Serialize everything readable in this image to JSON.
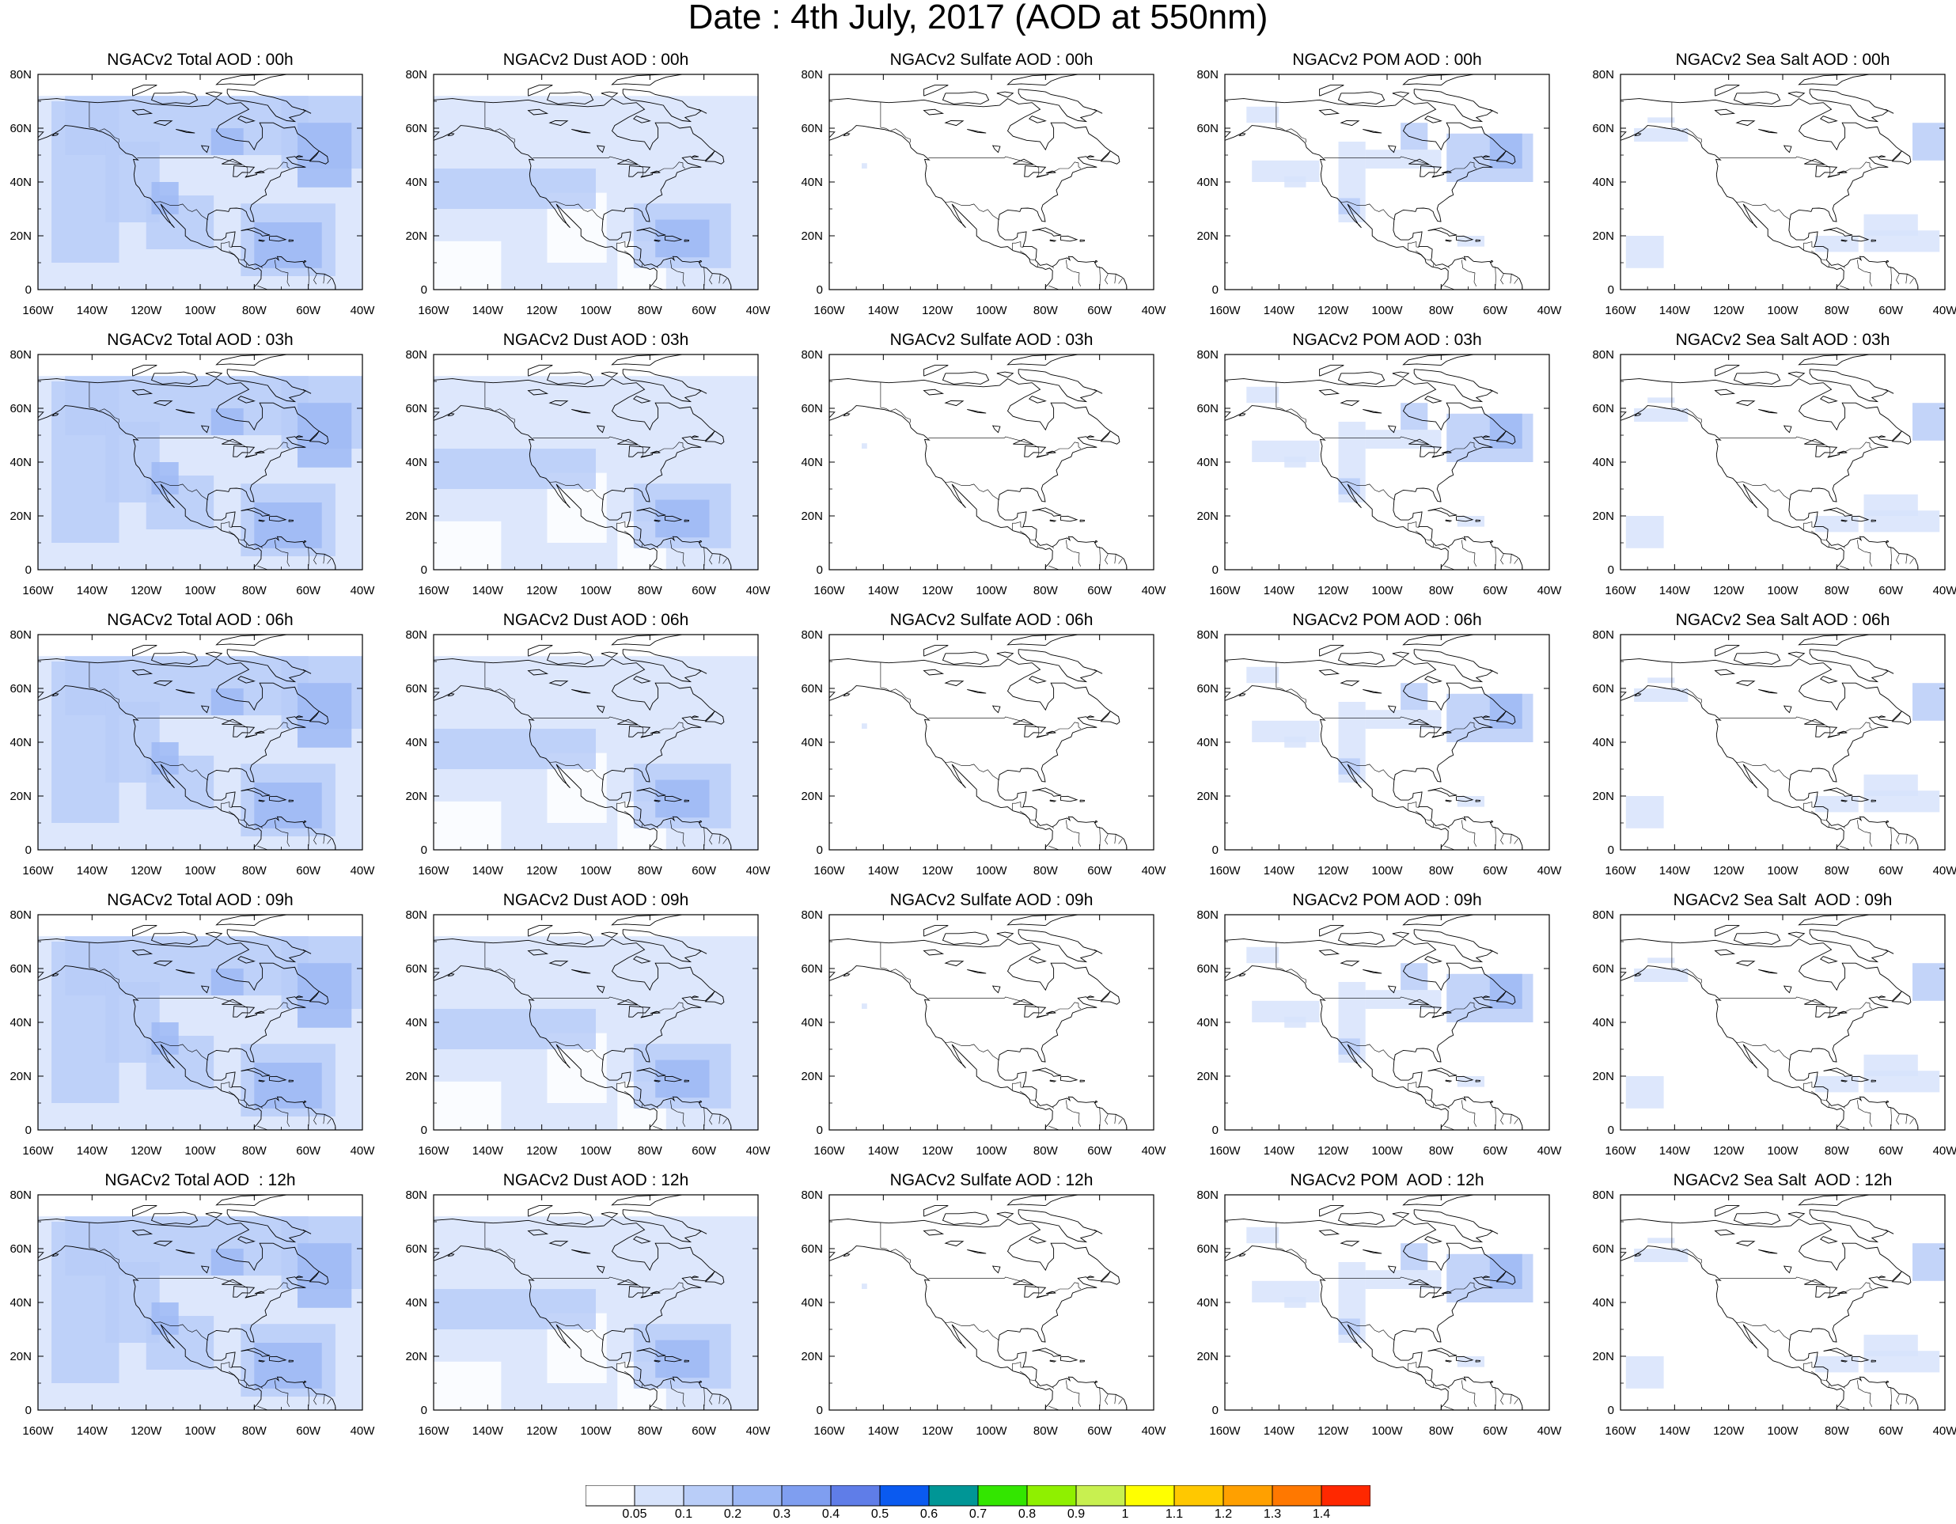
{
  "title": "Date : 4th July, 2017 (AOD at 550nm)",
  "panel_titles": [
    [
      "NGACv2 Total AOD : 00h",
      "NGACv2 Dust AOD : 00h",
      "NGACv2 Sulfate AOD : 00h",
      "NGACv2 POM AOD : 00h",
      "NGACv2 Sea Salt AOD : 00h"
    ],
    [
      "NGACv2 Total AOD : 03h",
      "NGACv2 Dust AOD : 03h",
      "NGACv2 Sulfate AOD : 03h",
      "NGACv2 POM AOD : 03h",
      "NGACv2 Sea Salt AOD : 03h"
    ],
    [
      "NGACv2 Total AOD : 06h",
      "NGACv2 Dust AOD : 06h",
      "NGACv2 Sulfate AOD : 06h",
      "NGACv2 POM AOD : 06h",
      "NGACv2 Sea Salt AOD : 06h"
    ],
    [
      "NGACv2 Total AOD : 09h",
      "NGACv2 Dust AOD : 09h",
      "NGACv2 Sulfate AOD : 09h",
      "NGACv2 POM AOD : 09h",
      "NGACv2 Sea Salt  AOD : 09h"
    ],
    [
      "NGACv2 Total AOD  : 12h",
      "NGACv2 Dust AOD : 12h",
      "NGACv2 Sulfate AOD : 12h",
      "NGACv2 POM  AOD : 12h",
      "NGACv2 Sea Salt  AOD : 12h"
    ]
  ],
  "lon_ticks": [
    "160W",
    "140W",
    "120W",
    "100W",
    "80W",
    "60W",
    "40W"
  ],
  "lat_ticks": [
    "0",
    "20N",
    "40N",
    "60N",
    "80N"
  ],
  "colorbar": {
    "labels": [
      "0.05",
      "0.1",
      "0.2",
      "0.3",
      "0.4",
      "0.5",
      "0.6",
      "0.7",
      "0.8",
      "0.9",
      "1",
      "1.1",
      "1.2",
      "1.3",
      "1.4"
    ],
    "colors": [
      "#ffffff",
      "#d7e3fb",
      "#b9cdf8",
      "#9db8f5",
      "#7f9ef0",
      "#5f7de8",
      "#0a5af0",
      "#009696",
      "#33e600",
      "#8ff000",
      "#c8f050",
      "#ffff00",
      "#ffc800",
      "#ffa000",
      "#ff7800",
      "#ff2800"
    ]
  },
  "aod_colors": {
    "land_border": "#333333",
    "coast": "#000000"
  }
}
